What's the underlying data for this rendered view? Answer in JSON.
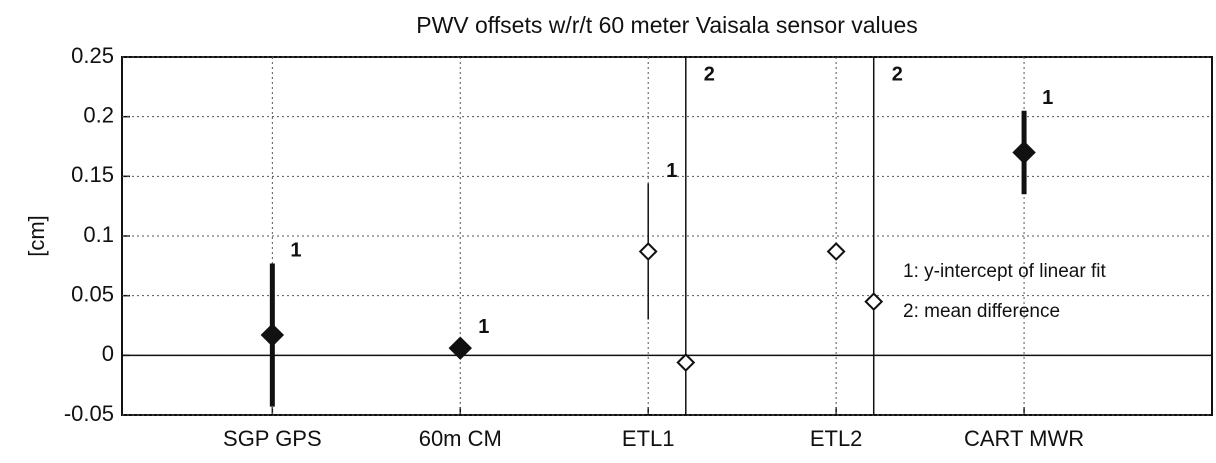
{
  "chart_data": {
    "type": "errorbar",
    "title": "PWV offsets w/r/t 60 meter Vaisala sensor values",
    "ylabel": "[cm]",
    "xlim": [
      0.2,
      6.0
    ],
    "ylim": [
      -0.05,
      0.25
    ],
    "xticks": [
      {
        "value": 1,
        "label": "SGP GPS"
      },
      {
        "value": 2,
        "label": "60m CM"
      },
      {
        "value": 3,
        "label": "ETL1"
      },
      {
        "value": 4,
        "label": "ETL2"
      },
      {
        "value": 5,
        "label": "CART MWR"
      }
    ],
    "yticks": [
      -0.05,
      0,
      0.05,
      0.1,
      0.15,
      0.2,
      0.25
    ],
    "grid": true,
    "color": "#111111",
    "series": [
      {
        "x": [
          1,
          2,
          3,
          3.2,
          4,
          4.2,
          5
        ],
        "values": [
          0.017,
          0.006,
          0.087,
          -0.006,
          0.087,
          0.045,
          0.17
        ],
        "errors": [
          0.06,
          0.007,
          0.057,
          0.3,
          0,
          0.3,
          0.035
        ],
        "filled": [
          true,
          true,
          false,
          false,
          false,
          false,
          true
        ],
        "labels": [
          "1",
          "1",
          "1",
          "2",
          null,
          "2",
          "1"
        ]
      }
    ],
    "legend": [
      "1: y-intercept of linear fit",
      "2: mean difference"
    ]
  }
}
